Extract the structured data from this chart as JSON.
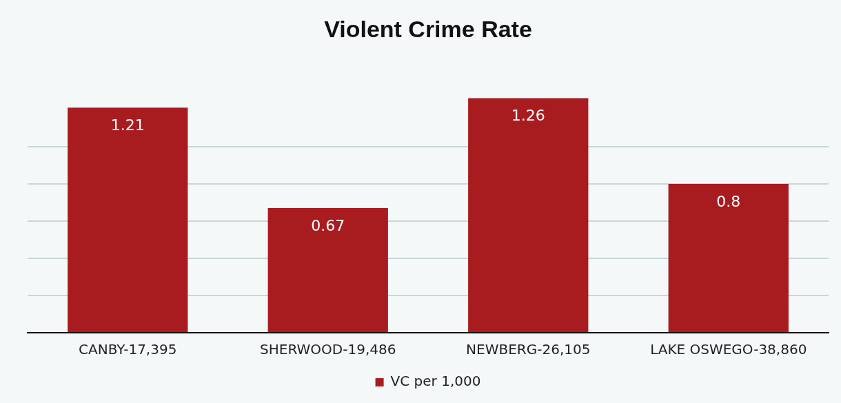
{
  "chart_data": {
    "type": "bar",
    "title": "Violent Crime Rate",
    "categories": [
      "CANBY-17,395",
      "SHERWOOD-19,486",
      "NEWBERG-26,105",
      "LAKE OSWEGO-38,860"
    ],
    "series": [
      {
        "name": "VC per 1,000",
        "color": "#a81c20",
        "values": [
          1.21,
          0.67,
          1.26,
          0.8
        ]
      }
    ],
    "yticks": [
      {
        "value": 0,
        "label": null
      },
      {
        "value": 0.2,
        "label": null
      },
      {
        "value": 0.4,
        "label": null
      },
      {
        "value": 0.6,
        "label": null
      },
      {
        "value": 0.8,
        "label": null
      },
      {
        "value": 1,
        "label": null
      }
    ],
    "tick_labels": "x",
    "grid": "y",
    "legend": "bottom",
    "data_labels": true
  }
}
